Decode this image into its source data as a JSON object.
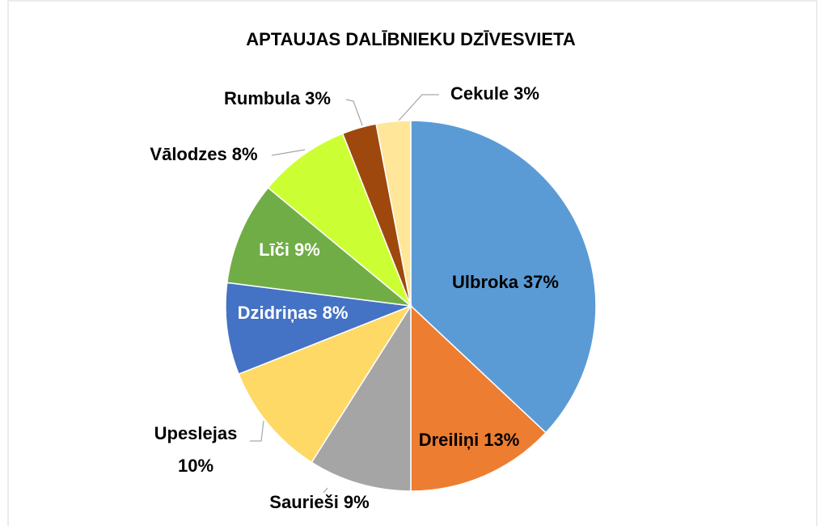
{
  "chart_data": {
    "type": "pie",
    "title": "APTAUJAS DALĪBNIEKU DZĪVESVIETA",
    "categories": [
      "Ulbroka",
      "Dreiliņi",
      "Saurieši",
      "Upeslejas",
      "Dzidriņas",
      "Līči",
      "Vālodzes",
      "Rumbula",
      "Cekule"
    ],
    "values": [
      37,
      13,
      9,
      10,
      8,
      9,
      8,
      3,
      3
    ],
    "value_labels": [
      "37%",
      "13%",
      "9%",
      "10%",
      "8%",
      "9%",
      "8%",
      "3%",
      "3%"
    ],
    "colors": [
      "#5b9bd5",
      "#ed7d31",
      "#a5a5a5",
      "#ffd966",
      "#4472c4",
      "#70ad47",
      "#ccff33",
      "#9e480e",
      "#ffe699"
    ]
  }
}
